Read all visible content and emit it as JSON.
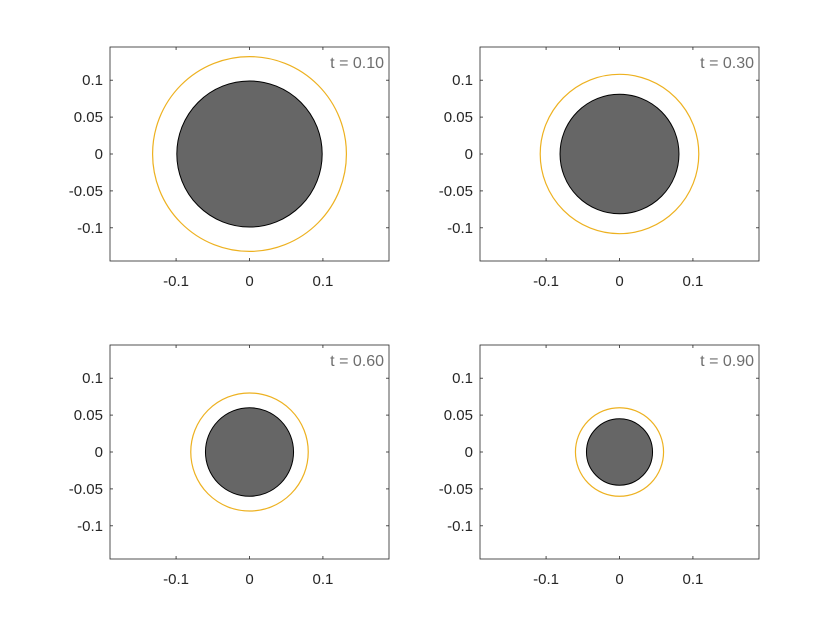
{
  "chart_data": [
    {
      "type": "scatter",
      "annotation": "t = 0.10",
      "xlim": [
        -0.19,
        0.19
      ],
      "ylim": [
        -0.145,
        0.145
      ],
      "xticks": [
        -0.1,
        0,
        0.1
      ],
      "xtick_labels": [
        "-0.1",
        "0",
        "0.1"
      ],
      "yticks": [
        0.1,
        0.05,
        0,
        -0.05,
        -0.1
      ],
      "ytick_labels": [
        "0.1",
        "0.05",
        "0",
        "-0.05",
        "-0.1"
      ],
      "grid": false,
      "shapes": [
        {
          "kind": "filled-circle",
          "center": [
            0,
            0
          ],
          "radius": 0.099,
          "fill": "#666666",
          "stroke": "#000000"
        },
        {
          "kind": "ring",
          "center": [
            0,
            0
          ],
          "radius": 0.132,
          "stroke": "#EDB120"
        }
      ]
    },
    {
      "type": "scatter",
      "annotation": "t = 0.30",
      "xlim": [
        -0.19,
        0.19
      ],
      "ylim": [
        -0.145,
        0.145
      ],
      "xticks": [
        -0.1,
        0,
        0.1
      ],
      "xtick_labels": [
        "-0.1",
        "0",
        "0.1"
      ],
      "yticks": [
        0.1,
        0.05,
        0,
        -0.05,
        -0.1
      ],
      "ytick_labels": [
        "0.1",
        "0.05",
        "0",
        "-0.05",
        "-0.1"
      ],
      "grid": false,
      "shapes": [
        {
          "kind": "filled-circle",
          "center": [
            0,
            0
          ],
          "radius": 0.081,
          "fill": "#666666",
          "stroke": "#000000"
        },
        {
          "kind": "ring",
          "center": [
            0,
            0
          ],
          "radius": 0.108,
          "stroke": "#EDB120"
        }
      ]
    },
    {
      "type": "scatter",
      "annotation": "t = 0.60",
      "xlim": [
        -0.19,
        0.19
      ],
      "ylim": [
        -0.145,
        0.145
      ],
      "xticks": [
        -0.1,
        0,
        0.1
      ],
      "xtick_labels": [
        "-0.1",
        "0",
        "0.1"
      ],
      "yticks": [
        0.1,
        0.05,
        0,
        -0.05,
        -0.1
      ],
      "ytick_labels": [
        "0.1",
        "0.05",
        "0",
        "-0.05",
        "-0.1"
      ],
      "grid": false,
      "shapes": [
        {
          "kind": "filled-circle",
          "center": [
            0,
            0
          ],
          "radius": 0.06,
          "fill": "#666666",
          "stroke": "#000000"
        },
        {
          "kind": "ring",
          "center": [
            0,
            0
          ],
          "radius": 0.08,
          "stroke": "#EDB120"
        }
      ]
    },
    {
      "type": "scatter",
      "annotation": "t = 0.90",
      "xlim": [
        -0.19,
        0.19
      ],
      "ylim": [
        -0.145,
        0.145
      ],
      "xticks": [
        -0.1,
        0,
        0.1
      ],
      "xtick_labels": [
        "-0.1",
        "0",
        "0.1"
      ],
      "yticks": [
        0.1,
        0.05,
        0,
        -0.05,
        -0.1
      ],
      "ytick_labels": [
        "0.1",
        "0.05",
        "0",
        "-0.05",
        "-0.1"
      ],
      "grid": false,
      "shapes": [
        {
          "kind": "filled-circle",
          "center": [
            0,
            0
          ],
          "radius": 0.045,
          "fill": "#666666",
          "stroke": "#000000"
        },
        {
          "kind": "ring",
          "center": [
            0,
            0
          ],
          "radius": 0.06,
          "stroke": "#EDB120"
        }
      ]
    }
  ]
}
